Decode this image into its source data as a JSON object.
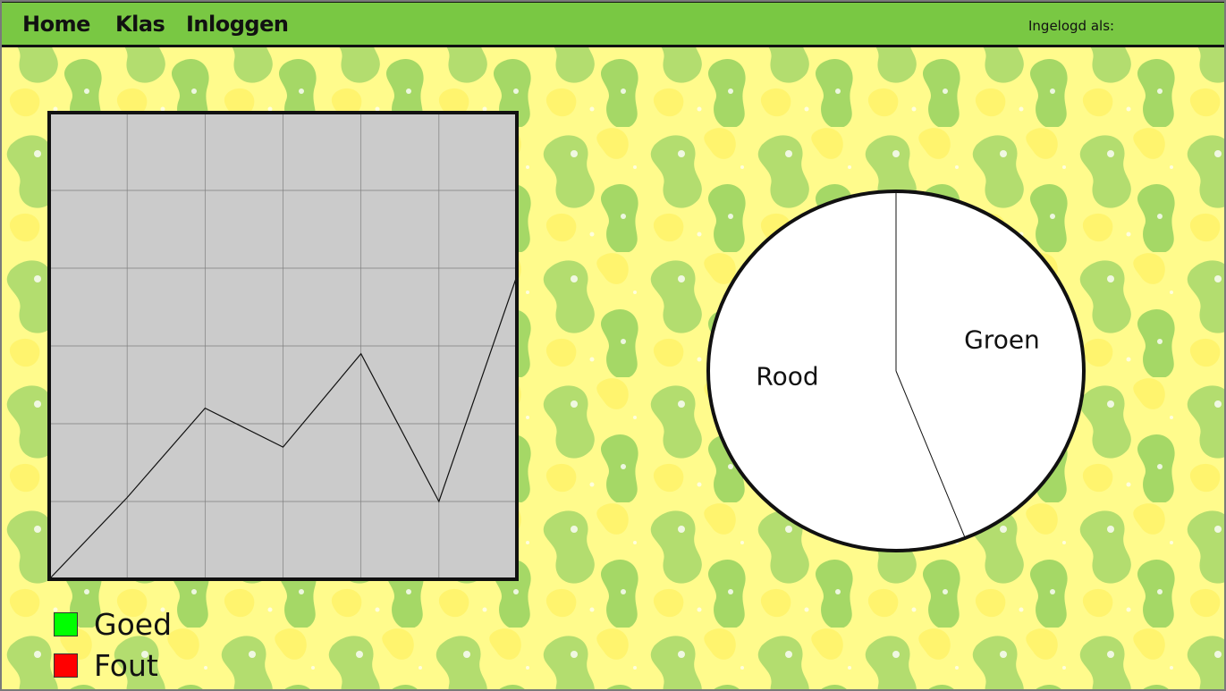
{
  "nav": {
    "items": [
      {
        "label": "Home"
      },
      {
        "label": "Klas"
      },
      {
        "label": "Inloggen"
      }
    ],
    "login_status": "Ingelogd als:"
  },
  "colors": {
    "navbar": "#79c843",
    "background": "#fffb8c",
    "chart_bg": "#cbcbcb",
    "goed": "#00ff00",
    "fout": "#ff0000"
  },
  "legend": [
    {
      "label": "Goed",
      "color": "#00ff00"
    },
    {
      "label": "Fout",
      "color": "#ff0000"
    }
  ],
  "chart_data": [
    {
      "type": "line",
      "title": "",
      "xlabel": "",
      "ylabel": "",
      "x": [
        0,
        1,
        2,
        3,
        4,
        5,
        6
      ],
      "series": [
        {
          "values": [
            0,
            1.05,
            2.2,
            1.7,
            2.9,
            1.0,
            3.9
          ]
        }
      ],
      "xlim": [
        0,
        6
      ],
      "ylim": [
        0,
        6
      ],
      "grid": true
    },
    {
      "type": "pie",
      "title": "",
      "slices": [
        {
          "label": "Rood",
          "value": 56
        },
        {
          "label": "Groen",
          "value": 44
        }
      ]
    }
  ]
}
